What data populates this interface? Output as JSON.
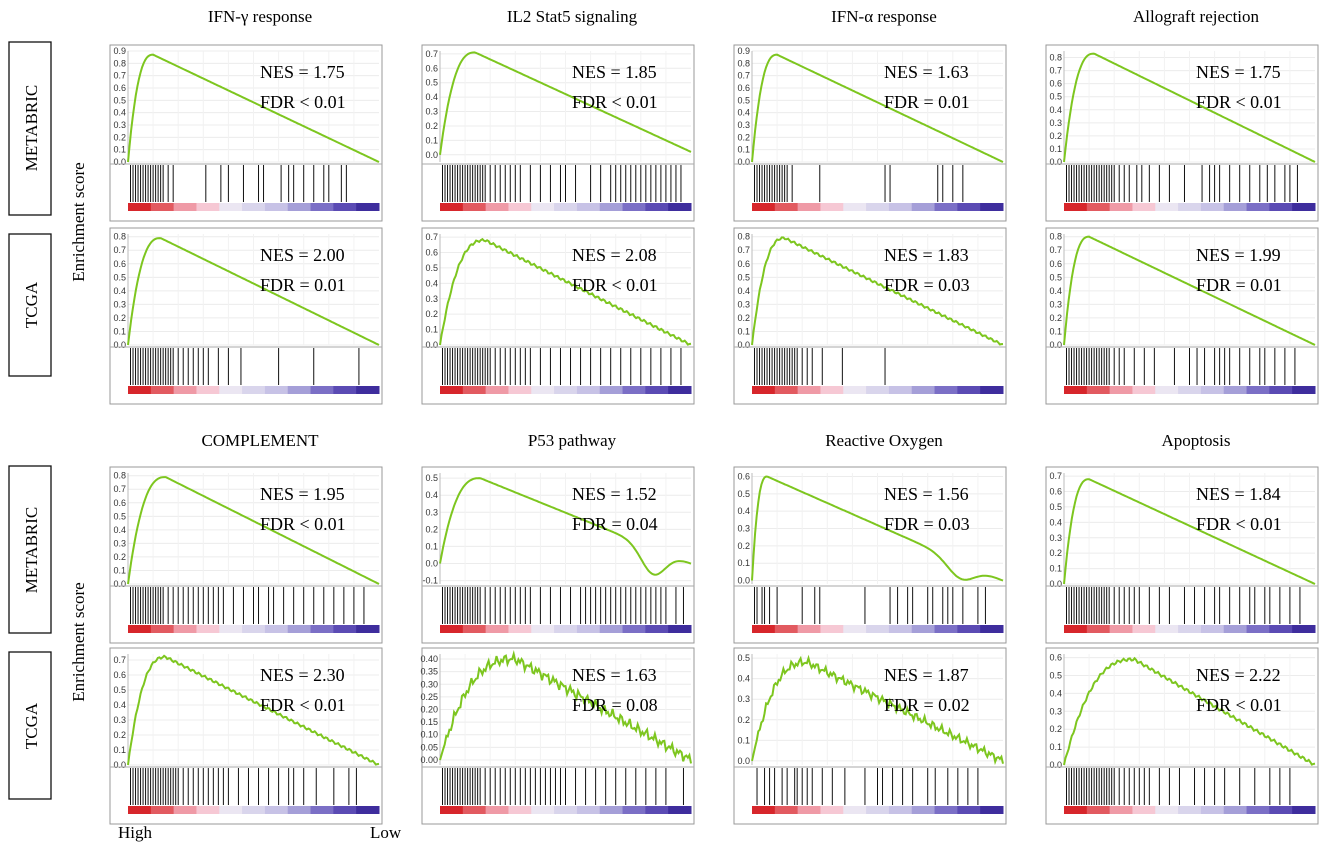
{
  "figure": {
    "y_axis_label": "Enrichment score",
    "x_axis_low": "Low",
    "x_axis_high": "High",
    "row_labels": [
      "METABRIC",
      "TCGA"
    ],
    "line_color": "#7dc61f"
  },
  "chart_data": [
    {
      "type": "line",
      "title": "IFN-γ response",
      "cohort": "METABRIC",
      "nes": "NES = 1.75",
      "fdr": "FDR < 0.01",
      "yticks": [
        "0.0",
        "0.1",
        "0.2",
        "0.3",
        "0.4",
        "0.5",
        "0.6",
        "0.7",
        "0.8",
        "0.9"
      ],
      "ylim": [
        0,
        0.9
      ],
      "peak": 0.87,
      "peak_x": 0.1,
      "end": 0.0,
      "shape": "smooth",
      "hits": [
        0.01,
        0.02,
        0.03,
        0.04,
        0.05,
        0.06,
        0.07,
        0.08,
        0.09,
        0.1,
        0.11,
        0.12,
        0.13,
        0.14,
        0.16,
        0.18,
        0.31,
        0.37,
        0.4,
        0.46,
        0.52,
        0.54,
        0.61,
        0.64,
        0.66,
        0.7,
        0.74,
        0.78,
        0.8,
        0.85,
        0.87
      ]
    },
    {
      "type": "line",
      "title": "IL2 Stat5 signaling",
      "cohort": "METABRIC",
      "nes": "NES = 1.85",
      "fdr": "FDR < 0.01",
      "yticks": [
        "0.0",
        "0.1",
        "0.2",
        "0.3",
        "0.4",
        "0.5",
        "0.6",
        "0.7"
      ],
      "ylim": [
        -0.05,
        0.72
      ],
      "peak": 0.71,
      "peak_x": 0.14,
      "end": 0.02,
      "dip": -0.02,
      "shape": "smooth",
      "hits": [
        0.01,
        0.02,
        0.03,
        0.04,
        0.05,
        0.06,
        0.07,
        0.08,
        0.09,
        0.1,
        0.11,
        0.12,
        0.13,
        0.14,
        0.15,
        0.16,
        0.17,
        0.18,
        0.2,
        0.22,
        0.24,
        0.26,
        0.28,
        0.3,
        0.32,
        0.36,
        0.4,
        0.44,
        0.48,
        0.5,
        0.54,
        0.6,
        0.64,
        0.68,
        0.7,
        0.72,
        0.74,
        0.76,
        0.78,
        0.8,
        0.82,
        0.84,
        0.86,
        0.88,
        0.9,
        0.92,
        0.94,
        0.96
      ]
    },
    {
      "type": "line",
      "title": "IFN-α response",
      "cohort": "METABRIC",
      "nes": "NES = 1.63",
      "fdr": "FDR = 0.01",
      "yticks": [
        "0.0",
        "0.1",
        "0.2",
        "0.3",
        "0.4",
        "0.5",
        "0.6",
        "0.7",
        "0.8",
        "0.9"
      ],
      "ylim": [
        0,
        0.9
      ],
      "peak": 0.87,
      "peak_x": 0.1,
      "end": 0.0,
      "shape": "smooth",
      "hits": [
        0.01,
        0.02,
        0.03,
        0.04,
        0.05,
        0.06,
        0.07,
        0.08,
        0.09,
        0.1,
        0.11,
        0.12,
        0.13,
        0.14,
        0.16,
        0.27,
        0.53,
        0.55,
        0.74,
        0.76,
        0.8,
        0.84
      ]
    },
    {
      "type": "line",
      "title": "Allograft rejection",
      "cohort": "METABRIC",
      "nes": "NES = 1.75",
      "fdr": "FDR < 0.01",
      "yticks": [
        "0.0",
        "0.1",
        "0.2",
        "0.3",
        "0.4",
        "0.5",
        "0.6",
        "0.7",
        "0.8"
      ],
      "ylim": [
        0,
        0.85
      ],
      "peak": 0.83,
      "peak_x": 0.12,
      "end": 0.0,
      "shape": "smooth",
      "hits": [
        0.01,
        0.02,
        0.03,
        0.04,
        0.05,
        0.06,
        0.07,
        0.08,
        0.09,
        0.1,
        0.11,
        0.12,
        0.13,
        0.14,
        0.15,
        0.16,
        0.17,
        0.18,
        0.19,
        0.2,
        0.22,
        0.24,
        0.26,
        0.29,
        0.31,
        0.34,
        0.38,
        0.42,
        0.48,
        0.55,
        0.58,
        0.6,
        0.62,
        0.66,
        0.7,
        0.74,
        0.78,
        0.81,
        0.84,
        0.88,
        0.9,
        0.93
      ]
    },
    {
      "type": "line",
      "title": "IFN-γ response",
      "cohort": "TCGA",
      "nes": "NES = 2.00",
      "fdr": "FDR = 0.01",
      "yticks": [
        "0.0",
        "0.1",
        "0.2",
        "0.3",
        "0.4",
        "0.5",
        "0.6",
        "0.7",
        "0.8"
      ],
      "ylim": [
        0,
        0.82
      ],
      "peak": 0.79,
      "peak_x": 0.13,
      "end": 0.0,
      "shape": "smooth",
      "hits": [
        0.01,
        0.02,
        0.03,
        0.04,
        0.05,
        0.06,
        0.07,
        0.08,
        0.09,
        0.1,
        0.11,
        0.12,
        0.13,
        0.14,
        0.15,
        0.16,
        0.17,
        0.18,
        0.2,
        0.22,
        0.24,
        0.26,
        0.28,
        0.3,
        0.32,
        0.36,
        0.4,
        0.45,
        0.6,
        0.74,
        0.92
      ]
    },
    {
      "type": "line",
      "title": "IL2 Stat5 signaling",
      "cohort": "TCGA",
      "nes": "NES = 2.08",
      "fdr": "FDR < 0.01",
      "yticks": [
        "0.0",
        "0.1",
        "0.2",
        "0.3",
        "0.4",
        "0.5",
        "0.6",
        "0.7"
      ],
      "ylim": [
        0,
        0.72
      ],
      "peak": 0.68,
      "peak_x": 0.18,
      "end": 0.0,
      "shape": "rugged",
      "hits": [
        0.01,
        0.02,
        0.03,
        0.04,
        0.05,
        0.06,
        0.07,
        0.08,
        0.09,
        0.1,
        0.11,
        0.12,
        0.13,
        0.14,
        0.15,
        0.16,
        0.17,
        0.18,
        0.19,
        0.2,
        0.22,
        0.24,
        0.26,
        0.28,
        0.3,
        0.32,
        0.34,
        0.36,
        0.4,
        0.44,
        0.48,
        0.52,
        0.56,
        0.6,
        0.64,
        0.68,
        0.72,
        0.76,
        0.8,
        0.84,
        0.88,
        0.92,
        0.96
      ]
    },
    {
      "type": "line",
      "title": "IFN-α response",
      "cohort": "TCGA",
      "nes": "NES = 1.83",
      "fdr": "FDR = 0.03",
      "yticks": [
        "0.0",
        "0.1",
        "0.2",
        "0.3",
        "0.4",
        "0.5",
        "0.6",
        "0.7",
        "0.8"
      ],
      "ylim": [
        0,
        0.82
      ],
      "peak": 0.79,
      "peak_x": 0.13,
      "end": 0.0,
      "shape": "rugged",
      "hits": [
        0.01,
        0.02,
        0.03,
        0.04,
        0.05,
        0.06,
        0.07,
        0.08,
        0.09,
        0.1,
        0.11,
        0.12,
        0.13,
        0.14,
        0.15,
        0.16,
        0.17,
        0.18,
        0.2,
        0.22,
        0.24,
        0.28,
        0.36,
        0.53
      ]
    },
    {
      "type": "line",
      "title": "Allograft rejection",
      "cohort": "TCGA",
      "nes": "NES = 1.99",
      "fdr": "FDR = 0.01",
      "yticks": [
        "0.0",
        "0.1",
        "0.2",
        "0.3",
        "0.4",
        "0.5",
        "0.6",
        "0.7",
        "0.8"
      ],
      "ylim": [
        0,
        0.82
      ],
      "peak": 0.8,
      "peak_x": 0.1,
      "end": 0.0,
      "shape": "smooth",
      "hits": [
        0.01,
        0.02,
        0.03,
        0.04,
        0.05,
        0.06,
        0.07,
        0.08,
        0.09,
        0.1,
        0.11,
        0.12,
        0.13,
        0.14,
        0.15,
        0.16,
        0.17,
        0.18,
        0.2,
        0.22,
        0.24,
        0.28,
        0.32,
        0.36,
        0.44,
        0.5,
        0.53,
        0.56,
        0.6,
        0.62,
        0.64,
        0.66,
        0.7,
        0.74,
        0.78,
        0.8,
        0.84,
        0.88,
        0.92
      ]
    },
    {
      "type": "line",
      "title": "COMPLEMENT",
      "cohort": "METABRIC",
      "nes": "NES = 1.95",
      "fdr": "FDR < 0.01",
      "yticks": [
        "0.0",
        "0.1",
        "0.2",
        "0.3",
        "0.4",
        "0.5",
        "0.6",
        "0.7",
        "0.8"
      ],
      "ylim": [
        0,
        0.82
      ],
      "peak": 0.79,
      "peak_x": 0.15,
      "end": 0.0,
      "shape": "smooth",
      "hits": [
        0.01,
        0.02,
        0.03,
        0.04,
        0.05,
        0.06,
        0.07,
        0.08,
        0.09,
        0.1,
        0.11,
        0.12,
        0.13,
        0.14,
        0.16,
        0.18,
        0.2,
        0.22,
        0.24,
        0.26,
        0.28,
        0.3,
        0.32,
        0.34,
        0.36,
        0.38,
        0.42,
        0.46,
        0.5,
        0.52,
        0.56,
        0.58,
        0.62,
        0.66,
        0.7,
        0.74,
        0.78,
        0.82,
        0.86,
        0.9,
        0.94
      ]
    },
    {
      "type": "line",
      "title": "P53 pathway",
      "cohort": "METABRIC",
      "nes": "NES = 1.52",
      "fdr": "FDR = 0.04",
      "yticks": [
        "-0.1",
        "0.0",
        "0.1",
        "0.2",
        "0.3",
        "0.4",
        "0.5"
      ],
      "ylim": [
        -0.12,
        0.53
      ],
      "peak": 0.5,
      "peak_x": 0.16,
      "end": 0.0,
      "dip": -0.08,
      "shape": "dip",
      "hits": [
        0.01,
        0.02,
        0.03,
        0.04,
        0.05,
        0.06,
        0.07,
        0.08,
        0.09,
        0.1,
        0.11,
        0.12,
        0.13,
        0.14,
        0.15,
        0.16,
        0.18,
        0.2,
        0.22,
        0.24,
        0.26,
        0.28,
        0.3,
        0.32,
        0.34,
        0.36,
        0.4,
        0.44,
        0.48,
        0.52,
        0.56,
        0.58,
        0.6,
        0.62,
        0.64,
        0.66,
        0.68,
        0.7,
        0.72,
        0.74,
        0.76,
        0.78,
        0.8,
        0.82,
        0.84,
        0.86,
        0.88,
        0.9,
        0.94,
        0.97
      ]
    },
    {
      "type": "line",
      "title": "Reactive Oxygen",
      "cohort": "METABRIC",
      "nes": "NES = 1.56",
      "fdr": "FDR = 0.03",
      "yticks": [
        "0.0",
        "0.1",
        "0.2",
        "0.3",
        "0.4",
        "0.5",
        "0.6"
      ],
      "ylim": [
        -0.02,
        0.62
      ],
      "peak": 0.6,
      "peak_x": 0.06,
      "end": 0.0,
      "dip": 0.0,
      "shape": "dip",
      "hits": [
        0.01,
        0.02,
        0.04,
        0.05,
        0.07,
        0.1,
        0.2,
        0.25,
        0.27,
        0.45,
        0.55,
        0.58,
        0.62,
        0.64,
        0.7,
        0.72,
        0.76,
        0.78,
        0.8,
        0.84,
        0.9,
        0.93
      ]
    },
    {
      "type": "line",
      "title": "Apoptosis",
      "cohort": "METABRIC",
      "nes": "NES = 1.84",
      "fdr": "FDR < 0.01",
      "yticks": [
        "0.0",
        "0.1",
        "0.2",
        "0.3",
        "0.4",
        "0.5",
        "0.6",
        "0.7"
      ],
      "ylim": [
        0,
        0.72
      ],
      "peak": 0.68,
      "peak_x": 0.1,
      "end": 0.0,
      "shape": "smooth",
      "hits": [
        0.01,
        0.02,
        0.03,
        0.04,
        0.05,
        0.06,
        0.07,
        0.08,
        0.09,
        0.1,
        0.11,
        0.12,
        0.13,
        0.14,
        0.15,
        0.16,
        0.17,
        0.18,
        0.2,
        0.22,
        0.24,
        0.26,
        0.28,
        0.3,
        0.34,
        0.38,
        0.42,
        0.48,
        0.52,
        0.56,
        0.6,
        0.62,
        0.66,
        0.7,
        0.74,
        0.76,
        0.8,
        0.82,
        0.86,
        0.9,
        0.94
      ]
    },
    {
      "type": "line",
      "title": "COMPLEMENT",
      "cohort": "TCGA",
      "nes": "NES = 2.30",
      "fdr": "FDR < 0.01",
      "yticks": [
        "0.0",
        "0.1",
        "0.2",
        "0.3",
        "0.4",
        "0.5",
        "0.6",
        "0.7"
      ],
      "ylim": [
        0,
        0.74
      ],
      "peak": 0.72,
      "peak_x": 0.15,
      "end": 0.0,
      "shape": "rugged",
      "hits": [
        0.01,
        0.02,
        0.03,
        0.04,
        0.05,
        0.06,
        0.07,
        0.08,
        0.09,
        0.1,
        0.11,
        0.12,
        0.13,
        0.14,
        0.15,
        0.16,
        0.17,
        0.18,
        0.19,
        0.2,
        0.22,
        0.24,
        0.26,
        0.28,
        0.3,
        0.32,
        0.34,
        0.36,
        0.38,
        0.4,
        0.44,
        0.48,
        0.52,
        0.56,
        0.6,
        0.64,
        0.66,
        0.7,
        0.75,
        0.82,
        0.88,
        0.91
      ]
    },
    {
      "type": "line",
      "title": "P53 pathway",
      "cohort": "TCGA",
      "nes": "NES = 1.63",
      "fdr": "FDR = 0.08",
      "yticks": [
        "0.00",
        "0.05",
        "0.10",
        "0.15",
        "0.20",
        "0.25",
        "0.30",
        "0.35",
        "0.40"
      ],
      "ylim": [
        -0.02,
        0.42
      ],
      "peak": 0.4,
      "peak_x": 0.3,
      "end": 0.0,
      "shape": "noisy",
      "hits": [
        0.01,
        0.02,
        0.03,
        0.04,
        0.05,
        0.06,
        0.07,
        0.08,
        0.09,
        0.1,
        0.11,
        0.12,
        0.13,
        0.14,
        0.15,
        0.16,
        0.18,
        0.2,
        0.22,
        0.24,
        0.26,
        0.28,
        0.3,
        0.32,
        0.34,
        0.36,
        0.38,
        0.4,
        0.42,
        0.44,
        0.46,
        0.48,
        0.5,
        0.54,
        0.58,
        0.62,
        0.66,
        0.7,
        0.74,
        0.78,
        0.82,
        0.86,
        0.9,
        0.97
      ]
    },
    {
      "type": "line",
      "title": "Reactive Oxygen",
      "cohort": "TCGA",
      "nes": "NES = 1.87",
      "fdr": "FDR = 0.02",
      "yticks": [
        "0.0",
        "0.1",
        "0.2",
        "0.3",
        "0.4",
        "0.5"
      ],
      "ylim": [
        -0.02,
        0.52
      ],
      "peak": 0.48,
      "peak_x": 0.22,
      "end": 0.0,
      "shape": "noisy",
      "hits": [
        0.02,
        0.05,
        0.07,
        0.09,
        0.12,
        0.14,
        0.17,
        0.18,
        0.2,
        0.22,
        0.24,
        0.28,
        0.32,
        0.37,
        0.45,
        0.5,
        0.52,
        0.56,
        0.6,
        0.64,
        0.7,
        0.73,
        0.78,
        0.82,
        0.86,
        0.9
      ]
    },
    {
      "type": "line",
      "title": "Apoptosis",
      "cohort": "TCGA",
      "nes": "NES = 2.22",
      "fdr": "FDR < 0.01",
      "yticks": [
        "0.0",
        "0.1",
        "0.2",
        "0.3",
        "0.4",
        "0.5",
        "0.6"
      ],
      "ylim": [
        0,
        0.62
      ],
      "peak": 0.59,
      "peak_x": 0.28,
      "end": 0.0,
      "shape": "rugged",
      "hits": [
        0.01,
        0.02,
        0.03,
        0.04,
        0.05,
        0.06,
        0.07,
        0.08,
        0.09,
        0.1,
        0.11,
        0.12,
        0.13,
        0.14,
        0.15,
        0.16,
        0.17,
        0.18,
        0.19,
        0.2,
        0.22,
        0.24,
        0.26,
        0.28,
        0.3,
        0.32,
        0.34,
        0.38,
        0.42,
        0.46,
        0.52,
        0.56,
        0.6,
        0.64,
        0.7,
        0.76,
        0.82,
        0.86,
        0.9
      ]
    }
  ]
}
